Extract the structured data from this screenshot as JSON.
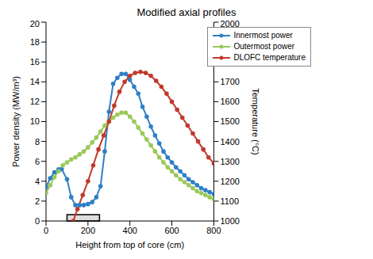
{
  "chart_data": {
    "type": "line",
    "title": "Modified axial profiles",
    "x_label": "Height from top of core (cm)",
    "y_label": "Power density (MW/m³)",
    "y2_label": "Temperature (°C)",
    "xlim": [
      0,
      800
    ],
    "xticks": [
      0,
      200,
      400,
      600,
      800
    ],
    "ylim": [
      0,
      20
    ],
    "yticks": [
      0,
      2,
      4,
      6,
      8,
      10,
      12,
      14,
      16,
      18,
      20
    ],
    "y2lim": [
      1000,
      2000
    ],
    "y2ticks": [
      1000,
      1100,
      1200,
      1300,
      1400,
      1500,
      1600,
      1700,
      1800,
      1900,
      2000
    ],
    "grid": false,
    "legend": "upper right",
    "highlight_range": [
      100,
      255
    ],
    "series": [
      {
        "name": "Innermost power",
        "color": "#2f7fc6",
        "marker": "circle",
        "axis": "y",
        "x": [
          0,
          20,
          40,
          60,
          75,
          100,
          120,
          140,
          160,
          180,
          200,
          220,
          240,
          260,
          280,
          300,
          320,
          340,
          360,
          380,
          400,
          420,
          440,
          460,
          480,
          500,
          520,
          540,
          560,
          580,
          600,
          620,
          640,
          660,
          680,
          700,
          720,
          740,
          760,
          780,
          800
        ],
        "values": [
          3.4,
          4.3,
          4.9,
          5.2,
          5.2,
          4.2,
          2.4,
          1.6,
          1.6,
          1.6,
          1.7,
          1.9,
          2.4,
          3.5,
          7.0,
          11.0,
          13.8,
          14.4,
          14.8,
          14.8,
          14.2,
          13.5,
          12.8,
          11.5,
          10.5,
          9.5,
          8.6,
          7.8,
          7.0,
          6.4,
          5.9,
          5.4,
          5.0,
          4.6,
          4.2,
          3.9,
          3.6,
          3.3,
          3.1,
          2.9,
          2.7
        ]
      },
      {
        "name": "Outermost power",
        "color": "#9bc95a",
        "marker": "circle",
        "axis": "y",
        "x": [
          0,
          20,
          40,
          60,
          80,
          100,
          120,
          140,
          160,
          180,
          200,
          220,
          240,
          260,
          280,
          300,
          320,
          340,
          360,
          380,
          400,
          420,
          440,
          460,
          480,
          500,
          520,
          540,
          560,
          580,
          600,
          620,
          640,
          660,
          680,
          700,
          720,
          740,
          760,
          780,
          800
        ],
        "values": [
          2.8,
          3.6,
          4.4,
          5.0,
          5.6,
          5.9,
          6.2,
          6.4,
          6.7,
          7.0,
          7.4,
          7.9,
          8.4,
          9.0,
          9.6,
          10.0,
          10.4,
          10.7,
          10.9,
          10.9,
          10.5,
          10.0,
          9.4,
          8.8,
          8.2,
          7.6,
          7.0,
          6.4,
          5.9,
          5.4,
          5.0,
          4.6,
          4.2,
          3.9,
          3.6,
          3.3,
          3.0,
          2.8,
          2.6,
          2.4,
          2.2
        ]
      },
      {
        "name": "DLOFC temperature",
        "color": "#c0392b",
        "marker": "circle",
        "axis": "y2",
        "x": [
          130,
          150,
          175,
          200,
          225,
          250,
          275,
          300,
          325,
          350,
          375,
          400,
          425,
          450,
          475,
          500,
          525,
          550,
          575,
          600,
          625,
          650,
          675,
          700,
          725,
          750,
          775,
          800
        ],
        "values": [
          1000,
          1060,
          1130,
          1200,
          1280,
          1360,
          1430,
          1500,
          1580,
          1650,
          1700,
          1730,
          1745,
          1750,
          1745,
          1730,
          1705,
          1675,
          1640,
          1600,
          1560,
          1520,
          1480,
          1440,
          1400,
          1360,
          1320,
          1290
        ]
      }
    ]
  }
}
